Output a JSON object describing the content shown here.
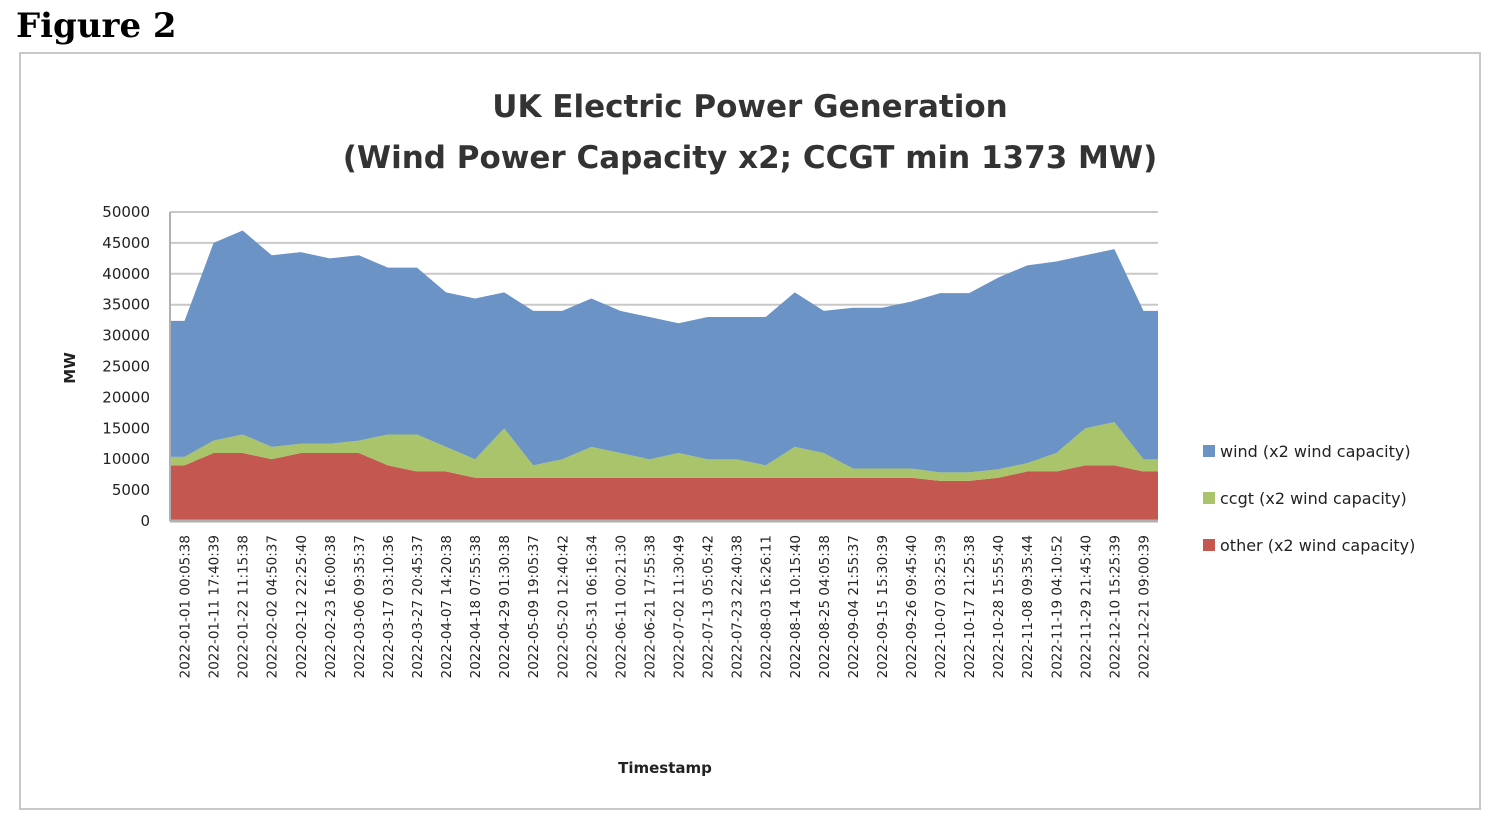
{
  "figure_label": "Figure 2",
  "chart_data": {
    "type": "area",
    "stacked": true,
    "title": "UK Electric Power Generation",
    "subtitle": "(Wind Power Capacity x2; CCGT min 1373 MW)",
    "xlabel": "Timestamp",
    "ylabel": "MW",
    "ylim": [
      0,
      50000
    ],
    "yticks": [
      0,
      5000,
      10000,
      15000,
      20000,
      25000,
      30000,
      35000,
      40000,
      45000,
      50000
    ],
    "grid": true,
    "legend_position": "right",
    "x": [
      "2022-01-01 00:05:38",
      "2022-01-11 17:40:39",
      "2022-01-22 11:15:38",
      "2022-02-02 04:50:37",
      "2022-02-12 22:25:40",
      "2022-02-23 16:00:38",
      "2022-03-06 09:35:37",
      "2022-03-17 03:10:36",
      "2022-03-27 20:45:37",
      "2022-04-07 14:20:38",
      "2022-04-18 07:55:38",
      "2022-04-29 01:30:38",
      "2022-05-09 19:05:37",
      "2022-05-20 12:40:42",
      "2022-05-31 06:16:34",
      "2022-06-11 00:21:30",
      "2022-06-21 17:55:38",
      "2022-07-02 11:30:49",
      "2022-07-13 05:05:42",
      "2022-07-23 22:40:38",
      "2022-08-03 16:26:11",
      "2022-08-14 10:15:40",
      "2022-08-25 04:05:38",
      "2022-09-04 21:55:37",
      "2022-09-15 15:30:39",
      "2022-09-26 09:45:40",
      "2022-10-07 03:25:39",
      "2022-10-17 21:25:38",
      "2022-10-28 15:55:40",
      "2022-11-08 09:35:44",
      "2022-11-19 04:10:52",
      "2022-11-29 21:45:40",
      "2022-12-10 15:25:39",
      "2022-12-21 09:00:39"
    ],
    "series": [
      {
        "name": "wind (x2 wind capacity)",
        "color": "#6b93c6",
        "values": [
          22000,
          32000,
          33000,
          31000,
          31000,
          30000,
          30000,
          27000,
          27000,
          25000,
          26000,
          22000,
          25000,
          24000,
          24000,
          23000,
          23000,
          21000,
          23000,
          23000,
          24000,
          25000,
          23000,
          26000,
          26000,
          27000,
          29000,
          29000,
          31000,
          32000,
          31000,
          28000,
          28000,
          24000
        ]
      },
      {
        "name": "ccgt (x2 wind capacity)",
        "color": "#a9c46a",
        "values": [
          1373,
          2000,
          3000,
          2000,
          1500,
          1500,
          2000,
          5000,
          6000,
          4000,
          3000,
          8000,
          2000,
          3000,
          5000,
          4000,
          3000,
          4000,
          3000,
          3000,
          2000,
          5000,
          4000,
          1500,
          1500,
          1500,
          1373,
          1373,
          1373,
          1373,
          3000,
          6000,
          7000,
          2000
        ]
      },
      {
        "name": "other (x2 wind capacity)",
        "color": "#c4574f",
        "values": [
          9000,
          11000,
          11000,
          10000,
          11000,
          11000,
          11000,
          9000,
          8000,
          8000,
          7000,
          7000,
          7000,
          7000,
          7000,
          7000,
          7000,
          7000,
          7000,
          7000,
          7000,
          7000,
          7000,
          7000,
          7000,
          7000,
          6500,
          6500,
          7000,
          8000,
          8000,
          9000,
          9000,
          8000
        ]
      }
    ]
  }
}
